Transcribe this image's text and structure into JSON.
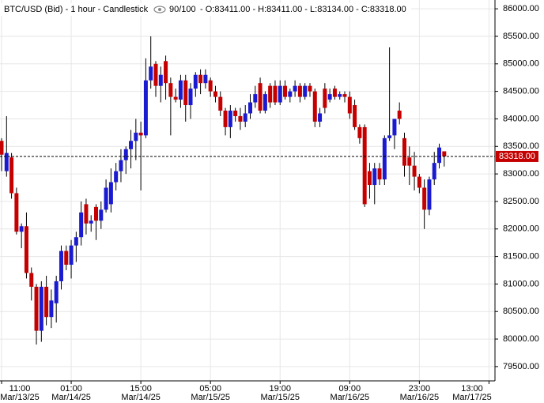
{
  "chart_data": {
    "type": "candlestick",
    "title": "BTC/USD (Bid) - 1 hour - Candlestick",
    "count_label": "90/100",
    "ohlc_label": "O:83411.00 - H:83411.00 - L:83134.00 - C:83318.00",
    "up_color": "#1a1ad0",
    "down_color": "#c40000",
    "wick_color": "#000000",
    "grid": true,
    "categories": [
      "11:00",
      null,
      null,
      null,
      null,
      null,
      null,
      null,
      null,
      null,
      null,
      null,
      null,
      null,
      "01:00",
      null,
      null,
      null,
      null,
      null,
      null,
      null,
      null,
      null,
      null,
      null,
      null,
      null,
      "15:00",
      null,
      null,
      null,
      null,
      null,
      null,
      null,
      null,
      null,
      null,
      null,
      null,
      null,
      "05:00",
      null,
      null,
      null,
      null,
      null,
      null,
      null,
      null,
      null,
      null,
      null,
      null,
      null,
      "19:00",
      null,
      null,
      null,
      null,
      null,
      null,
      null,
      null,
      null,
      null,
      null,
      null,
      null,
      "09:00",
      null,
      null,
      null,
      null,
      null,
      null,
      null,
      null,
      null,
      null,
      null,
      null,
      null,
      "23:00",
      null,
      null,
      null,
      null,
      null
    ],
    "open": [
      83600,
      83050,
      83300,
      82650,
      81950,
      82050,
      81200,
      80950,
      80150,
      80950,
      80400,
      80650,
      81050,
      81600,
      81350,
      81700,
      81850,
      82450,
      82100,
      82400,
      82150,
      82350,
      82450,
      82850,
      83050,
      83250,
      83450,
      83600,
      83750,
      83700,
      84700,
      85000,
      84600,
      85050,
      84650,
      84400,
      84350,
      84700,
      84250,
      84550,
      84800,
      84650,
      84700,
      84500,
      84400,
      84150,
      83850,
      84150,
      84050,
      83950,
      84100,
      84300,
      84650,
      84150,
      84600,
      84600,
      84300,
      84600,
      84400,
      84500,
      84600,
      84400,
      84600,
      84500,
      83950,
      84550,
      84350,
      84550,
      84400,
      84450,
      84400,
      84250,
      83850,
      83850,
      83050,
      82800,
      83100,
      82900,
      83650,
      83700,
      84150,
      83650,
      83300,
      83150,
      82950,
      82750,
      82350,
      82900,
      83200,
      83411
    ],
    "high": [
      83650,
      84050,
      83380,
      82750,
      82100,
      82300,
      81300,
      81000,
      81050,
      81150,
      80900,
      81150,
      81700,
      81700,
      81800,
      81950,
      82500,
      82550,
      82250,
      82450,
      82500,
      82900,
      83100,
      83200,
      83450,
      83500,
      83800,
      84000,
      83950,
      85100,
      85500,
      85050,
      84950,
      85150,
      84750,
      84550,
      84800,
      84800,
      84650,
      84850,
      84900,
      84900,
      84750,
      84600,
      84500,
      84200,
      84250,
      84200,
      84200,
      84250,
      84450,
      84600,
      84750,
      84500,
      84650,
      84700,
      84700,
      84700,
      84550,
      84700,
      84650,
      84650,
      84650,
      84550,
      84200,
      84650,
      84550,
      84600,
      84500,
      84500,
      84500,
      84350,
      83900,
      83900,
      83200,
      83200,
      83200,
      83700,
      85300,
      84000,
      84300,
      83750,
      83500,
      83400,
      83000,
      82900,
      82950,
      83400,
      83550,
      83411
    ],
    "low": [
      83050,
      82950,
      82550,
      81900,
      81650,
      81100,
      80700,
      79900,
      79950,
      80250,
      80200,
      80300,
      80900,
      81250,
      81100,
      81400,
      81700,
      81900,
      81950,
      81800,
      82000,
      82300,
      82300,
      82700,
      82850,
      83000,
      83100,
      83250,
      82700,
      83650,
      84550,
      84400,
      84300,
      84350,
      83700,
      84300,
      84200,
      83950,
      84000,
      84400,
      84450,
      84550,
      84400,
      84300,
      84050,
      83700,
      83650,
      83950,
      83800,
      83850,
      84000,
      84200,
      84100,
      84100,
      84200,
      84250,
      84250,
      84350,
      84300,
      84400,
      84300,
      84350,
      84400,
      83850,
      83850,
      84100,
      84300,
      84350,
      84350,
      84300,
      84000,
      83800,
      83550,
      82400,
      82550,
      82450,
      82800,
      82800,
      83600,
      83450,
      83900,
      82950,
      82800,
      82700,
      82650,
      82000,
      82250,
      82800,
      83100,
      83134
    ],
    "close": [
      83350,
      83380,
      82650,
      81950,
      82050,
      81200,
      80950,
      80150,
      80950,
      80400,
      80700,
      81050,
      81600,
      81350,
      81700,
      81850,
      82300,
      82100,
      82150,
      82150,
      82350,
      82750,
      82850,
      83050,
      83250,
      83450,
      83600,
      83750,
      83700,
      84700,
      84950,
      84600,
      84800,
      84650,
      84400,
      84350,
      84700,
      84250,
      84550,
      84800,
      84650,
      84800,
      84500,
      84400,
      84150,
      83850,
      84150,
      84050,
      83950,
      84100,
      84300,
      84450,
      84150,
      84450,
      84300,
      84300,
      84600,
      84400,
      84500,
      84600,
      84400,
      84600,
      84500,
      83950,
      84100,
      84200,
      84450,
      84400,
      84450,
      84400,
      84100,
      83850,
      83650,
      82450,
      82800,
      83100,
      82900,
      83650,
      83700,
      84000,
      84000,
      83150,
      83150,
      82950,
      82750,
      82350,
      82900,
      83200,
      83480,
      83318
    ],
    "xticks": [
      {
        "value": 0,
        "label": "11:00",
        "date": "Mar/13/25"
      },
      {
        "value": 14,
        "label": "01:00",
        "date": "Mar/14/25"
      },
      {
        "value": 28,
        "label": "15:00",
        "date": "Mar/14/25"
      },
      {
        "value": 42,
        "label": "05:00",
        "date": "Mar/15/25"
      },
      {
        "value": 56,
        "label": "19:00",
        "date": "Mar/15/25"
      },
      {
        "value": 70,
        "label": "09:00",
        "date": "Mar/16/25"
      },
      {
        "value": 84,
        "label": "23:00",
        "date": "Mar/16/25"
      },
      {
        "value": 98,
        "label": "13:00",
        "date": "Mar/17/25"
      }
    ],
    "ylim": [
      79240,
      86160
    ],
    "yticks": [
      {
        "value": 79500,
        "label": "79500.00"
      },
      {
        "value": 80000,
        "label": "80000.00"
      },
      {
        "value": 80500,
        "label": "80500.00"
      },
      {
        "value": 81000,
        "label": "81000.00"
      },
      {
        "value": 81500,
        "label": "81500.00"
      },
      {
        "value": 82000,
        "label": "82000.00"
      },
      {
        "value": 82500,
        "label": "82500.00"
      },
      {
        "value": 83000,
        "label": "83000.00"
      },
      {
        "value": 83500,
        "label": "83500.00"
      },
      {
        "value": 84000,
        "label": "84000.00"
      },
      {
        "value": 84500,
        "label": "84500.00"
      },
      {
        "value": 85000,
        "label": "85000.00"
      },
      {
        "value": 85500,
        "label": "85500.00"
      },
      {
        "value": 86000,
        "label": "86000.00"
      }
    ],
    "current_price": {
      "value": 83318,
      "label": "83318.00"
    }
  }
}
